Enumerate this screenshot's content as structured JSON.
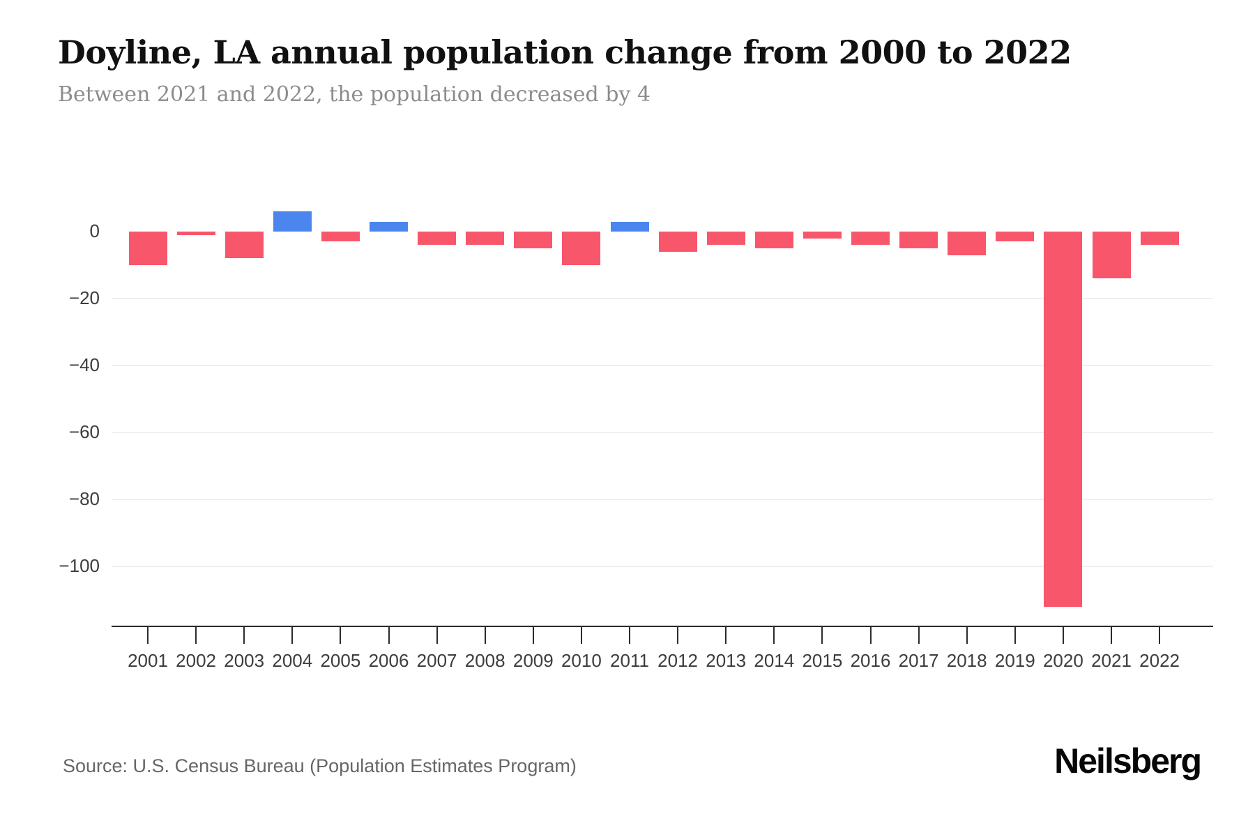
{
  "header": {
    "title": "Doyline, LA annual population change from 2000 to 2022",
    "subtitle": "Between 2021 and 2022, the population decreased by 4"
  },
  "footer": {
    "source": "Source: U.S. Census Bureau (Population Estimates Program)",
    "brand": "Neilsberg"
  },
  "chart_data": {
    "type": "bar",
    "title": "Doyline, LA annual population change from 2000 to 2022",
    "subtitle": "Between 2021 and 2022, the population decreased by 4",
    "categories": [
      "2001",
      "2002",
      "2003",
      "2004",
      "2005",
      "2006",
      "2007",
      "2008",
      "2009",
      "2010",
      "2011",
      "2012",
      "2013",
      "2014",
      "2015",
      "2016",
      "2017",
      "2018",
      "2019",
      "2020",
      "2021",
      "2022"
    ],
    "values": [
      -10,
      -1,
      -8,
      6,
      -3,
      3,
      -4,
      -4,
      -5,
      -10,
      3,
      -6,
      -4,
      -5,
      -2,
      -4,
      -5,
      -7,
      -3,
      -112,
      -14,
      -4
    ],
    "xlabel": "",
    "ylabel": "",
    "ylim": [
      -118,
      10
    ],
    "yticks": [
      0,
      -20,
      -40,
      -60,
      -80,
      -100
    ],
    "grid": "horizontal-light",
    "legend": false,
    "colors": {
      "negative": "#f8566b",
      "positive": "#4a86ee",
      "gridline": "#efefef",
      "axis": "#2b2b2b",
      "tick_text": "#3d3d3d"
    }
  }
}
